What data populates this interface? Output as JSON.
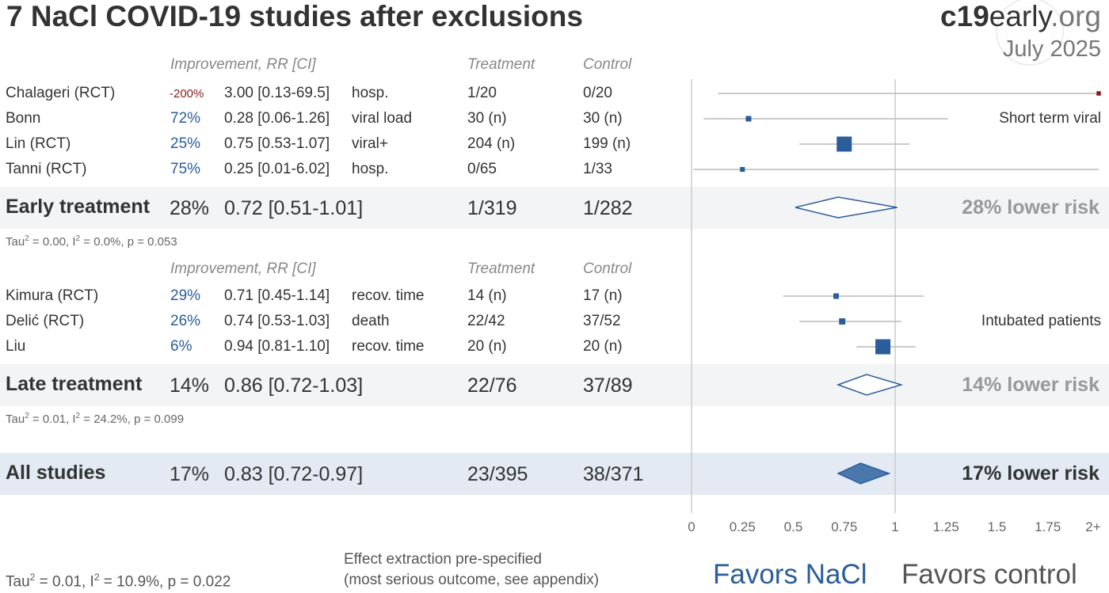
{
  "title": "7 NaCl COVID-19 studies after exclusions",
  "brand": {
    "part1": "c19",
    "part2": "early",
    "part3": ".org"
  },
  "date": "July 2025",
  "headers": {
    "improvement": "Improvement, RR [CI]",
    "treatment": "Treatment",
    "control": "Control"
  },
  "early_studies": [
    {
      "name": "Chalageri (RCT)",
      "improvement": "-200%",
      "rr": "3.00 [0.13-69.5]",
      "outcome": "hosp.",
      "treatment": "1/20",
      "control": "0/20"
    },
    {
      "name": "Bonn",
      "improvement": "72%",
      "rr": "0.28 [0.06-1.26]",
      "outcome": "viral load",
      "treatment": "30 (n)",
      "control": "30 (n)"
    },
    {
      "name": "Lin (RCT)",
      "improvement": "25%",
      "rr": "0.75 [0.53-1.07]",
      "outcome": "viral+",
      "treatment": "204 (n)",
      "control": "199 (n)"
    },
    {
      "name": "Tanni (RCT)",
      "improvement": "75%",
      "rr": "0.25 [0.01-6.02]",
      "outcome": "hosp.",
      "treatment": "0/65",
      "control": "1/33"
    }
  ],
  "early_summary": {
    "label": "Early treatment",
    "improvement": "28%",
    "rr": "0.72 [0.51-1.01]",
    "treatment": "1/319",
    "control": "1/282",
    "risk": "28% lower risk",
    "tau": "Tau",
    "tau_rest": " = 0.00, I",
    "i2_rest": " = 0.0%, p = 0.053"
  },
  "early_annotation": "Short term viral",
  "late_studies": [
    {
      "name": "Kimura (RCT)",
      "improvement": "29%",
      "rr": "0.71 [0.45-1.14]",
      "outcome": "recov. time",
      "treatment": "14 (n)",
      "control": "17 (n)"
    },
    {
      "name": "Delić (RCT)",
      "improvement": "26%",
      "rr": "0.74 [0.53-1.03]",
      "outcome": "death",
      "treatment": "22/42",
      "control": "37/52"
    },
    {
      "name": "Liu",
      "improvement": "6%",
      "rr": "0.94 [0.81-1.10]",
      "outcome": "recov. time",
      "treatment": "20 (n)",
      "control": "20 (n)"
    }
  ],
  "late_summary": {
    "label": "Late treatment",
    "improvement": "14%",
    "rr": "0.86 [0.72-1.03]",
    "treatment": "22/76",
    "control": "37/89",
    "risk": "14% lower risk",
    "tau": "Tau",
    "tau_rest": " = 0.01, I",
    "i2_rest": " = 24.2%, p = 0.099"
  },
  "late_annotation": "Intubated patients",
  "all_summary": {
    "label": "All studies",
    "improvement": "17%",
    "rr": "0.83 [0.72-0.97]",
    "treatment": "23/395",
    "control": "38/371",
    "risk": "17% lower risk"
  },
  "footer": {
    "tau": "Tau",
    "tau_rest": " = 0.01, I",
    "i2_rest": " = 10.9%, p = 0.022",
    "note_line1": "Effect extraction pre-specified",
    "note_line2": "(most serious outcome, see appendix)",
    "favors_left": "Favors NaCl",
    "favors_right": "Favors control"
  },
  "colors": {
    "accent": "#2a5d9a",
    "negative": "#8b1a1a",
    "band": "#f2f4f6",
    "all_band": "#e3eaf4",
    "risk_gray": "#999999"
  },
  "chart_data": {
    "type": "forest",
    "x_ticks": [
      "0",
      "0.25",
      "0.5",
      "0.75",
      "1",
      "1.25",
      "1.5",
      "1.75",
      "2+"
    ],
    "xlim": [
      0,
      2
    ],
    "reference_line": 1,
    "studies": [
      {
        "name": "Chalageri (RCT)",
        "group": "early",
        "rr": 3.0,
        "lo": 0.13,
        "hi": 69.5,
        "weight": 0.5
      },
      {
        "name": "Bonn",
        "group": "early",
        "rr": 0.28,
        "lo": 0.06,
        "hi": 1.26,
        "weight": 1
      },
      {
        "name": "Lin (RCT)",
        "group": "early",
        "rr": 0.75,
        "lo": 0.53,
        "hi": 1.07,
        "weight": 5
      },
      {
        "name": "Tanni (RCT)",
        "group": "early",
        "rr": 0.25,
        "lo": 0.01,
        "hi": 6.02,
        "weight": 0.7
      },
      {
        "name": "Kimura (RCT)",
        "group": "late",
        "rr": 0.71,
        "lo": 0.45,
        "hi": 1.14,
        "weight": 1
      },
      {
        "name": "Delić (RCT)",
        "group": "late",
        "rr": 0.74,
        "lo": 0.53,
        "hi": 1.03,
        "weight": 1.3
      },
      {
        "name": "Liu",
        "group": "late",
        "rr": 0.94,
        "lo": 0.81,
        "hi": 1.1,
        "weight": 5
      }
    ],
    "summaries": [
      {
        "label": "Early treatment",
        "rr": 0.72,
        "lo": 0.51,
        "hi": 1.01
      },
      {
        "label": "Late treatment",
        "rr": 0.86,
        "lo": 0.72,
        "hi": 1.03
      },
      {
        "label": "All studies",
        "rr": 0.83,
        "lo": 0.72,
        "hi": 0.97
      }
    ]
  }
}
